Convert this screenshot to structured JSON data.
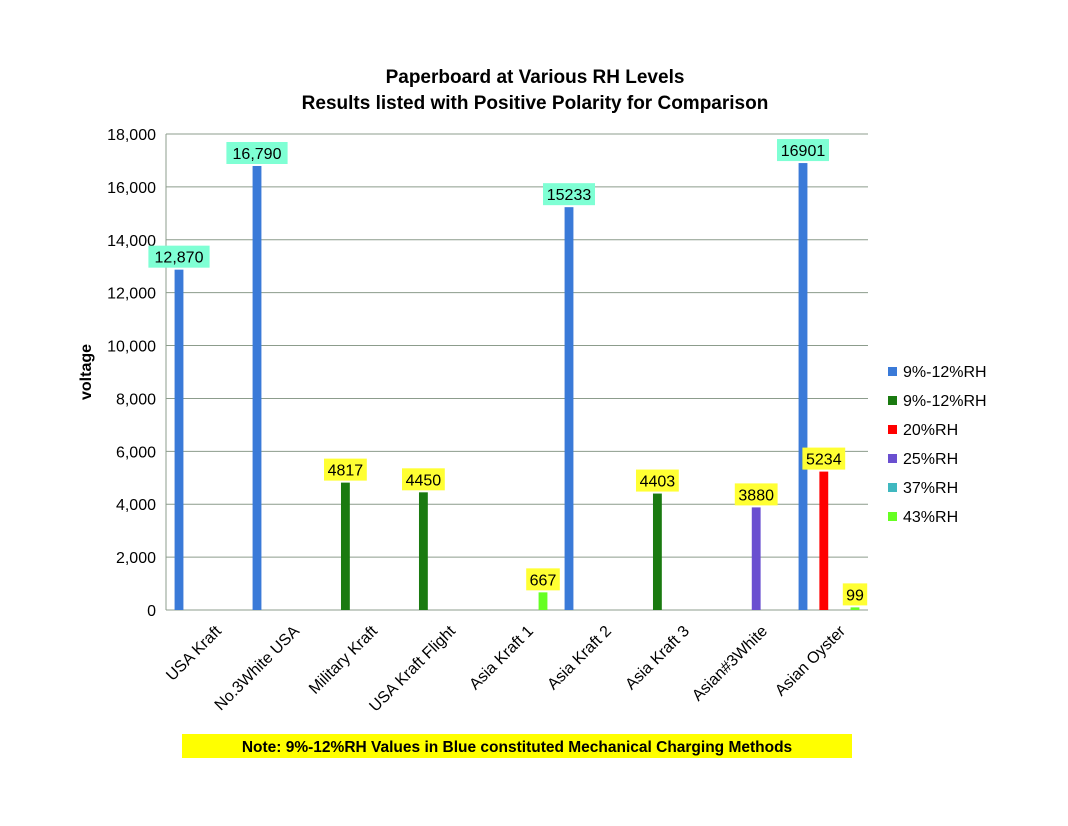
{
  "chart_data": {
    "type": "bar",
    "title": "Paperboard  at Various  RH Levels",
    "subtitle": "Results  listed  with Positive  Polarity  for  Comparison",
    "ylabel": "voltage",
    "xlabel": "",
    "ylim": [
      0,
      18000
    ],
    "yticks": [
      "0",
      "2,000",
      "4,000",
      "6,000",
      "8,000",
      "10,000",
      "12,000",
      "14,000",
      "16,000",
      "18,000"
    ],
    "grid": true,
    "legend_position": "right",
    "categories": [
      "USA Kraft",
      "No.3White USA",
      "Military Kraft",
      "USA Kraft Flight",
      "Asia Kraft 1",
      "Asia Kraft 2",
      "Asia Kraft 3",
      "Asian#3White",
      "Asian Oyster"
    ],
    "series": [
      {
        "name": "9%-12%RH",
        "color": "#3a7ad8",
        "values": [
          12870,
          16790,
          null,
          null,
          null,
          15233,
          null,
          null,
          16901
        ],
        "labels": [
          "12,870",
          "16,790",
          null,
          null,
          null,
          "15233",
          null,
          null,
          "16901"
        ],
        "label_bg": "#7fffd4"
      },
      {
        "name": "9%-12%RH",
        "color": "#1a7a10",
        "values": [
          null,
          null,
          4817,
          4450,
          null,
          null,
          4403,
          null,
          null
        ],
        "labels": [
          null,
          null,
          "4817",
          "4450",
          null,
          null,
          "4403",
          null,
          null
        ],
        "label_bg": "#ffff33"
      },
      {
        "name": "20%RH",
        "color": "#ff0000",
        "values": [
          null,
          null,
          null,
          null,
          null,
          null,
          null,
          null,
          5234
        ],
        "labels": [
          null,
          null,
          null,
          null,
          null,
          null,
          null,
          null,
          "5234"
        ],
        "label_bg": "#ffff33"
      },
      {
        "name": "25%RH",
        "color": "#6a4fd0",
        "values": [
          null,
          null,
          null,
          null,
          null,
          null,
          null,
          3880,
          null
        ],
        "labels": [
          null,
          null,
          null,
          null,
          null,
          null,
          null,
          "3880",
          null
        ],
        "label_bg": "#ffff33"
      },
      {
        "name": "37%RH",
        "color": "#40b8c0",
        "values": [
          null,
          null,
          null,
          null,
          null,
          null,
          null,
          null,
          null
        ],
        "labels": [
          null,
          null,
          null,
          null,
          null,
          null,
          null,
          null,
          null
        ],
        "label_bg": "#ffff33"
      },
      {
        "name": "43%RH",
        "color": "#66ff22",
        "values": [
          null,
          null,
          null,
          null,
          667,
          null,
          null,
          null,
          99
        ],
        "labels": [
          null,
          null,
          null,
          null,
          "667",
          null,
          null,
          null,
          "99"
        ],
        "label_bg": "#ffff33"
      }
    ],
    "note": "Note: 9%-12%RH Values in Blue constituted Mechanical Charging Methods",
    "note_bg": "#ffff00",
    "gridline_color": "#8c9c8c"
  }
}
